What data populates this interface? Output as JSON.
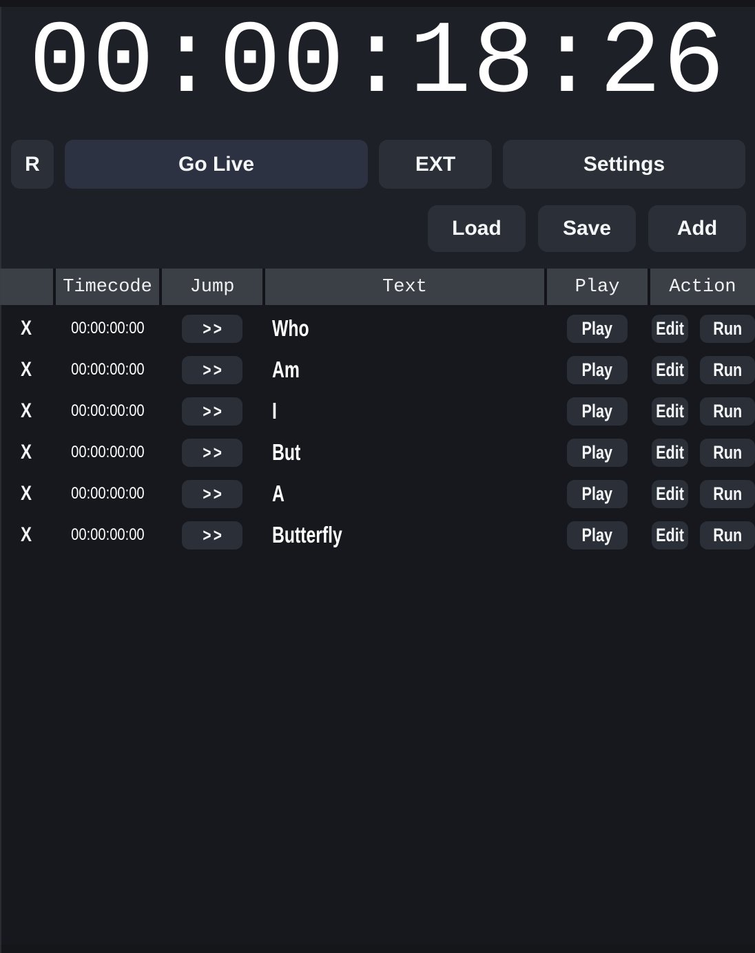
{
  "clock": {
    "display": "00:00:18:26"
  },
  "toolbar": {
    "record_label": "R",
    "go_live_label": "Go Live",
    "ext_label": "EXT",
    "settings_label": "Settings"
  },
  "file_actions": {
    "load_label": "Load",
    "save_label": "Save",
    "add_label": "Add"
  },
  "table": {
    "headers": {
      "delete": "",
      "timecode": "Timecode",
      "jump": "Jump",
      "text": "Text",
      "play": "Play",
      "action": "Action"
    },
    "labels": {
      "delete": "X",
      "jump": ">>",
      "play": "Play",
      "edit": "Edit",
      "run": "Run"
    },
    "rows": [
      {
        "timecode": "00:00:00:00",
        "text": "Who"
      },
      {
        "timecode": "00:00:00:00",
        "text": "Am"
      },
      {
        "timecode": "00:00:00:00",
        "text": "I"
      },
      {
        "timecode": "00:00:00:00",
        "text": "But"
      },
      {
        "timecode": "00:00:00:00",
        "text": "A"
      },
      {
        "timecode": "00:00:00:00",
        "text": "Butterfly"
      }
    ]
  },
  "colors": {
    "frame_bg": "#14161a",
    "top_bg": "#1d2026",
    "table_bg": "#17181d",
    "header_bg": "#3b4046",
    "button_bg": "#2b3038",
    "go_live_bg": "#2d3243",
    "text": "#ffffff"
  }
}
